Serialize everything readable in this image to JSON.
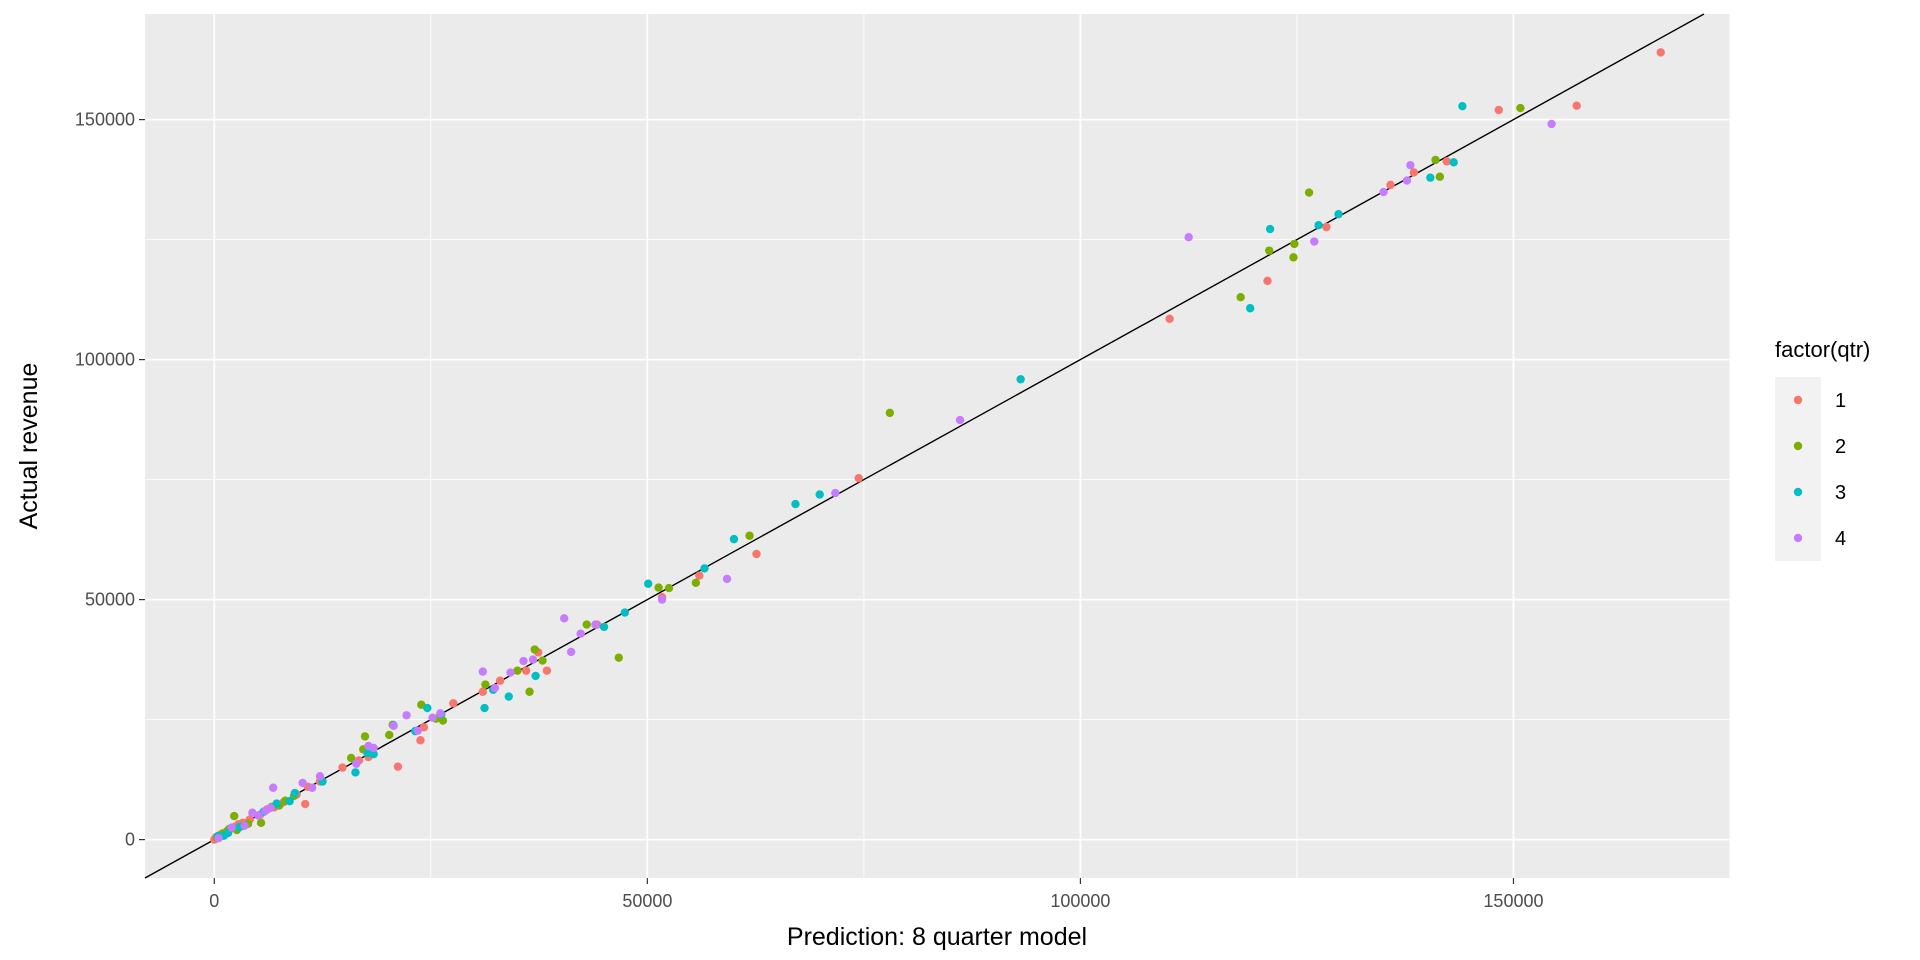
{
  "chart_data": {
    "type": "scatter",
    "title": "",
    "xlabel": "Prediction: 8 quarter model",
    "ylabel": "Actual revenue",
    "xlim": [
      -8000,
      175000
    ],
    "ylim": [
      -8000,
      172000
    ],
    "x_ticks": [
      0,
      50000,
      100000,
      150000
    ],
    "x_tick_labels": [
      "0",
      "50000",
      "100000",
      "150000"
    ],
    "y_ticks": [
      0,
      50000,
      100000,
      150000
    ],
    "y_tick_labels": [
      "0",
      "50000",
      "100000",
      "150000"
    ],
    "grid": true,
    "legend_position": "right",
    "legend_title": "factor(qtr)",
    "reference_line": {
      "type": "identity",
      "slope": 1,
      "intercept": 0,
      "color": "#000000"
    },
    "series": [
      {
        "name": "1",
        "color": "#F8766D",
        "points": [
          [
            0,
            0
          ],
          [
            200,
            500
          ],
          [
            600,
            900
          ],
          [
            1000,
            1300
          ],
          [
            1500,
            1800
          ],
          [
            1900,
            2300
          ],
          [
            2400,
            2700
          ],
          [
            2800,
            3200
          ],
          [
            3300,
            3500
          ],
          [
            3700,
            3400
          ],
          [
            4100,
            4200
          ],
          [
            5300,
            5200
          ],
          [
            6100,
            6300
          ],
          [
            6900,
            6700
          ],
          [
            8000,
            7800
          ],
          [
            9500,
            9400
          ],
          [
            10500,
            7400
          ],
          [
            10800,
            11000
          ],
          [
            12200,
            12100
          ],
          [
            14800,
            15000
          ],
          [
            16700,
            16500
          ],
          [
            17800,
            17200
          ],
          [
            21200,
            15200
          ],
          [
            23800,
            20700
          ],
          [
            24200,
            23400
          ],
          [
            27600,
            28400
          ],
          [
            31000,
            30800
          ],
          [
            33000,
            33100
          ],
          [
            36000,
            35200
          ],
          [
            37400,
            39000
          ],
          [
            38400,
            35200
          ],
          [
            44200,
            44800
          ],
          [
            51700,
            50500
          ],
          [
            56000,
            55000
          ],
          [
            62600,
            59500
          ],
          [
            74400,
            75300
          ],
          [
            110300,
            108500
          ],
          [
            121600,
            116400
          ],
          [
            128400,
            127600
          ],
          [
            135800,
            136400
          ],
          [
            138500,
            139000
          ],
          [
            142300,
            141300
          ],
          [
            148300,
            152000
          ],
          [
            157300,
            152900
          ],
          [
            167000,
            164000
          ]
        ]
      },
      {
        "name": "2",
        "color": "#7CAE00",
        "points": [
          [
            300,
            400
          ],
          [
            900,
            1200
          ],
          [
            1400,
            1600
          ],
          [
            1700,
            2200
          ],
          [
            2300,
            4900
          ],
          [
            2600,
            2000
          ],
          [
            3200,
            2800
          ],
          [
            3900,
            3300
          ],
          [
            5400,
            3500
          ],
          [
            6600,
            6800
          ],
          [
            7500,
            7100
          ],
          [
            8200,
            8100
          ],
          [
            9200,
            9100
          ],
          [
            15800,
            17000
          ],
          [
            17200,
            18800
          ],
          [
            17400,
            21500
          ],
          [
            20200,
            21800
          ],
          [
            20600,
            23900
          ],
          [
            23900,
            28100
          ],
          [
            25600,
            25200
          ],
          [
            26400,
            24800
          ],
          [
            31300,
            32300
          ],
          [
            35000,
            35200
          ],
          [
            36400,
            30800
          ],
          [
            37000,
            39600
          ],
          [
            37900,
            37300
          ],
          [
            43000,
            44800
          ],
          [
            46700,
            37900
          ],
          [
            51300,
            52500
          ],
          [
            52500,
            52400
          ],
          [
            55600,
            53500
          ],
          [
            61800,
            63300
          ],
          [
            78000,
            88900
          ],
          [
            118500,
            113000
          ],
          [
            121800,
            122700
          ],
          [
            124600,
            121300
          ],
          [
            124700,
            124100
          ],
          [
            126400,
            134800
          ],
          [
            141000,
            141600
          ],
          [
            141500,
            138100
          ],
          [
            150800,
            152400
          ]
        ]
      },
      {
        "name": "3",
        "color": "#00BFC4",
        "points": [
          [
            400,
            700
          ],
          [
            1100,
            800
          ],
          [
            1600,
            1400
          ],
          [
            2900,
            2600
          ],
          [
            5700,
            5800
          ],
          [
            7200,
            7500
          ],
          [
            8700,
            8000
          ],
          [
            9300,
            9700
          ],
          [
            12500,
            12100
          ],
          [
            16300,
            14000
          ],
          [
            17700,
            18000
          ],
          [
            18400,
            17800
          ],
          [
            20700,
            23800
          ],
          [
            23200,
            22600
          ],
          [
            24600,
            27400
          ],
          [
            26200,
            26100
          ],
          [
            31200,
            27400
          ],
          [
            32200,
            31200
          ],
          [
            34000,
            29800
          ],
          [
            37100,
            34100
          ],
          [
            45000,
            44300
          ],
          [
            47400,
            47300
          ],
          [
            50100,
            53300
          ],
          [
            56600,
            56500
          ],
          [
            60000,
            62600
          ],
          [
            67100,
            69900
          ],
          [
            69900,
            71900
          ],
          [
            93100,
            95900
          ],
          [
            119600,
            110700
          ],
          [
            121900,
            127200
          ],
          [
            127500,
            128000
          ],
          [
            129800,
            130300
          ],
          [
            140400,
            137900
          ],
          [
            143100,
            141100
          ],
          [
            144100,
            152800
          ]
        ]
      },
      {
        "name": "4",
        "color": "#C77CFF",
        "points": [
          [
            500,
            300
          ],
          [
            2000,
            2500
          ],
          [
            3500,
            2900
          ],
          [
            4400,
            5600
          ],
          [
            5100,
            5000
          ],
          [
            5900,
            6000
          ],
          [
            6500,
            6600
          ],
          [
            6800,
            10800
          ],
          [
            10200,
            11800
          ],
          [
            11300,
            10800
          ],
          [
            12200,
            13200
          ],
          [
            16400,
            15800
          ],
          [
            17800,
            19500
          ],
          [
            18400,
            19100
          ],
          [
            20700,
            23700
          ],
          [
            22200,
            25900
          ],
          [
            23500,
            22700
          ],
          [
            25200,
            25400
          ],
          [
            26100,
            26300
          ],
          [
            31000,
            35000
          ],
          [
            32400,
            31600
          ],
          [
            34200,
            34800
          ],
          [
            35700,
            37200
          ],
          [
            36800,
            37500
          ],
          [
            40400,
            46100
          ],
          [
            41200,
            39100
          ],
          [
            42300,
            42900
          ],
          [
            44000,
            44800
          ],
          [
            51700,
            50000
          ],
          [
            59200,
            54300
          ],
          [
            71700,
            72200
          ],
          [
            86100,
            87400
          ],
          [
            112500,
            125500
          ],
          [
            127000,
            124600
          ],
          [
            135000,
            134900
          ],
          [
            137700,
            137300
          ],
          [
            138100,
            140500
          ],
          [
            154400,
            149100
          ]
        ]
      }
    ]
  }
}
